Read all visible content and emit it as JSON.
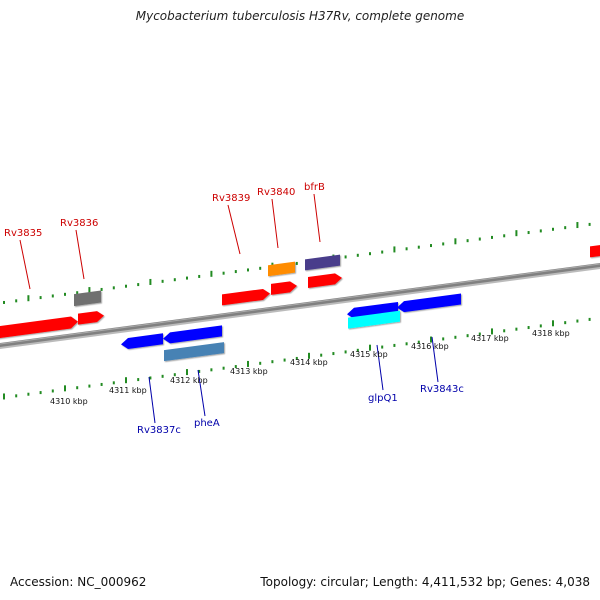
{
  "title": "Mycobacterium tuberculosis H37Rv, complete genome",
  "accession": "Accession: NC_000962",
  "summary": "Topology: circular; Length: 4,411,532 bp; Genes: 4,038",
  "colors": {
    "backbone": "#808080",
    "forward_gene": "#ff0000",
    "reverse_gene": "#0000ff",
    "forward_label": "#cc0000",
    "reverse_label": "#0000aa",
    "tick_dot": "#228b22",
    "orange": "#ff8c00",
    "purple": "#483d8b",
    "gray": "#707070",
    "steelblue": "#4682b4",
    "cyan": "#00ffff"
  },
  "kbp_ticks": [
    {
      "label": "4310 kbp"
    },
    {
      "label": "4311 kbp"
    },
    {
      "label": "4312 kbp"
    },
    {
      "label": "4313 kbp"
    },
    {
      "label": "4314 kbp"
    },
    {
      "label": "4315 kbp"
    },
    {
      "label": "4316 kbp"
    },
    {
      "label": "4317 kbp"
    },
    {
      "label": "4318 kbp"
    }
  ],
  "forward_labels": [
    {
      "text": "Rv3835"
    },
    {
      "text": "Rv3836"
    },
    {
      "text": "Rv3839"
    },
    {
      "text": "Rv3840"
    },
    {
      "text": "bfrB"
    }
  ],
  "reverse_labels": [
    {
      "text": "Rv3837c"
    },
    {
      "text": "pheA"
    },
    {
      "text": "glpQ1"
    },
    {
      "text": "Rv3843c"
    }
  ]
}
